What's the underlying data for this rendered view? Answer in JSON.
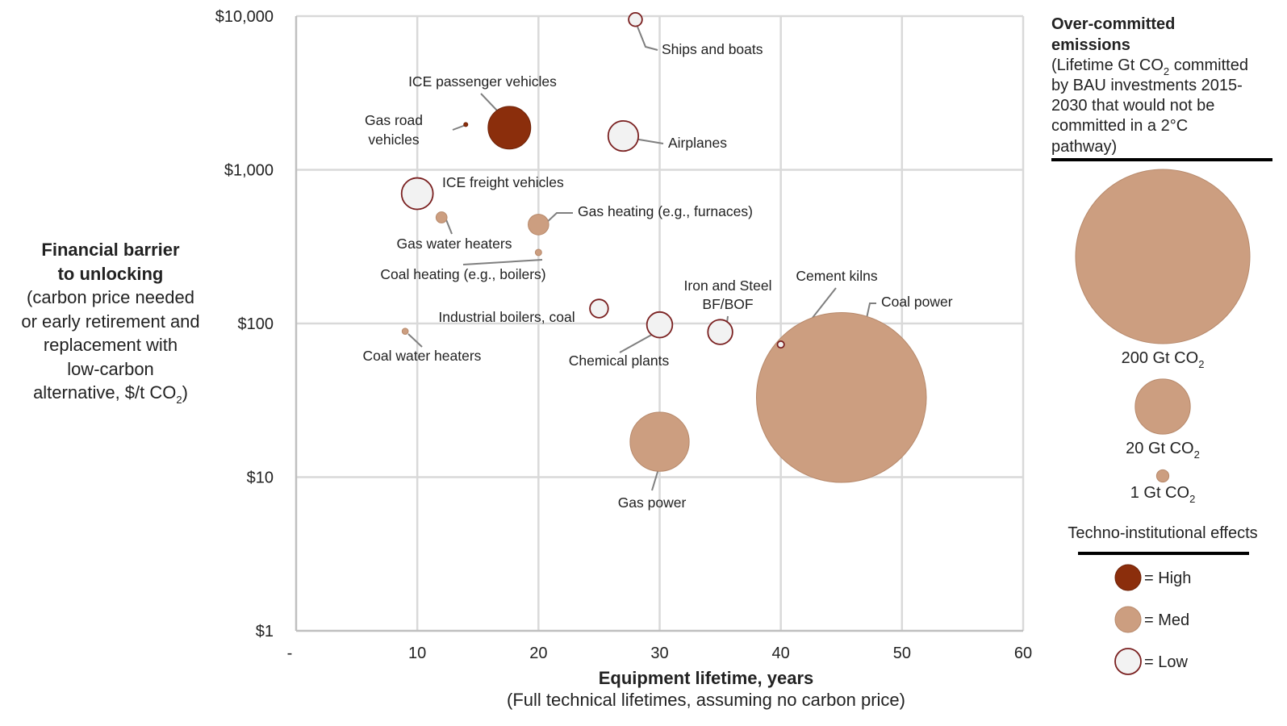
{
  "chart_data": {
    "type": "scatter",
    "x_axis": {
      "title": "Equipment lifetime, years",
      "subtitle": "(Full technical lifetimes, assuming no carbon price)",
      "ticks": [
        "-",
        "10",
        "20",
        "30",
        "40",
        "50",
        "60"
      ],
      "range": [
        0,
        60
      ]
    },
    "y_axis": {
      "title_lines": [
        "Financial barrier",
        "to unlocking"
      ],
      "subtitle_lines": [
        "(carbon price needed",
        "or early retirement and",
        "replacement with",
        "low-carbon",
        "alternative, $/t CO"
      ],
      "subtitle_sub": "2",
      "subtitle_end": ")",
      "ticks": [
        "$1",
        "$10",
        "$100",
        "$1,000",
        "$10,000"
      ],
      "scale": "log",
      "range": [
        1,
        10000
      ]
    },
    "grid": true,
    "effect_colors": {
      "High": "#8b2e0c",
      "Med": "#cc9e80",
      "Low": "#f2f2f2"
    },
    "points": [
      {
        "label": "Ships and boats",
        "x": 28,
        "y": 9500,
        "emissions": 1.2,
        "effect": "Low"
      },
      {
        "label": "ICE passenger vehicles",
        "x": 17.6,
        "y": 1880,
        "emissions": 12,
        "effect": "High"
      },
      {
        "label": "Gas road vehicles",
        "x": 14,
        "y": 1970,
        "emissions": 0.006,
        "effect": "High"
      },
      {
        "label": "Airplanes",
        "x": 27,
        "y": 1660,
        "emissions": 6,
        "effect": "Low"
      },
      {
        "label": "ICE freight vehicles",
        "x": 10,
        "y": 700,
        "emissions": 6.5,
        "effect": "Low"
      },
      {
        "label": "Gas water heaters",
        "x": 12,
        "y": 490,
        "emissions": 0.8,
        "effect": "Med"
      },
      {
        "label": "Gas heating (e.g., furnaces)",
        "x": 20,
        "y": 440,
        "emissions": 2.8,
        "effect": "Med"
      },
      {
        "label": "Coal heating (e.g., boilers)",
        "x": 20,
        "y": 290,
        "emissions": 0.27,
        "effect": "Med"
      },
      {
        "label": "Industrial boilers, coal",
        "x": 25,
        "y": 125,
        "emissions": 2.2,
        "effect": "Low"
      },
      {
        "label": "Chemical plants",
        "x": 30,
        "y": 98,
        "emissions": 4.3,
        "effect": "Low"
      },
      {
        "label": "Iron and Steel BF/BOF",
        "x": 35,
        "y": 88,
        "emissions": 4.0,
        "effect": "Low"
      },
      {
        "label": "Cement kilns",
        "x": 40,
        "y": 73,
        "emissions": 0.3,
        "effect": "Low"
      },
      {
        "label": "Coal water heaters",
        "x": 9,
        "y": 89,
        "emissions": 0.25,
        "effect": "Med"
      },
      {
        "label": "Coal power",
        "x": 45,
        "y": 33,
        "emissions": 190,
        "effect": "Med"
      },
      {
        "label": "Gas power",
        "x": 30,
        "y": 17,
        "emissions": 23,
        "effect": "Med"
      }
    ],
    "legend": {
      "size_title_lines": [
        "Over-committed",
        "emissions"
      ],
      "size_desc_lines": [
        "(Lifetime Gt CO",
        "by BAU investments 2015-",
        "2030 that would not be",
        "committed in a 2°C",
        "pathway)"
      ],
      "size_desc_line1_end": " committed",
      "size_desc_sub": "2",
      "sizes": [
        {
          "value": 200,
          "label": "200 Gt CO",
          "sub": "2"
        },
        {
          "value": 20,
          "label": "20 Gt CO",
          "sub": "2"
        },
        {
          "value": 1,
          "label": "1 Gt CO",
          "sub": "2"
        }
      ],
      "effects_title": "Techno-institutional effects",
      "effects": [
        {
          "key": "High",
          "label": "= High"
        },
        {
          "key": "Med",
          "label": "= Med"
        },
        {
          "key": "Low",
          "label": "= Low"
        }
      ]
    }
  }
}
